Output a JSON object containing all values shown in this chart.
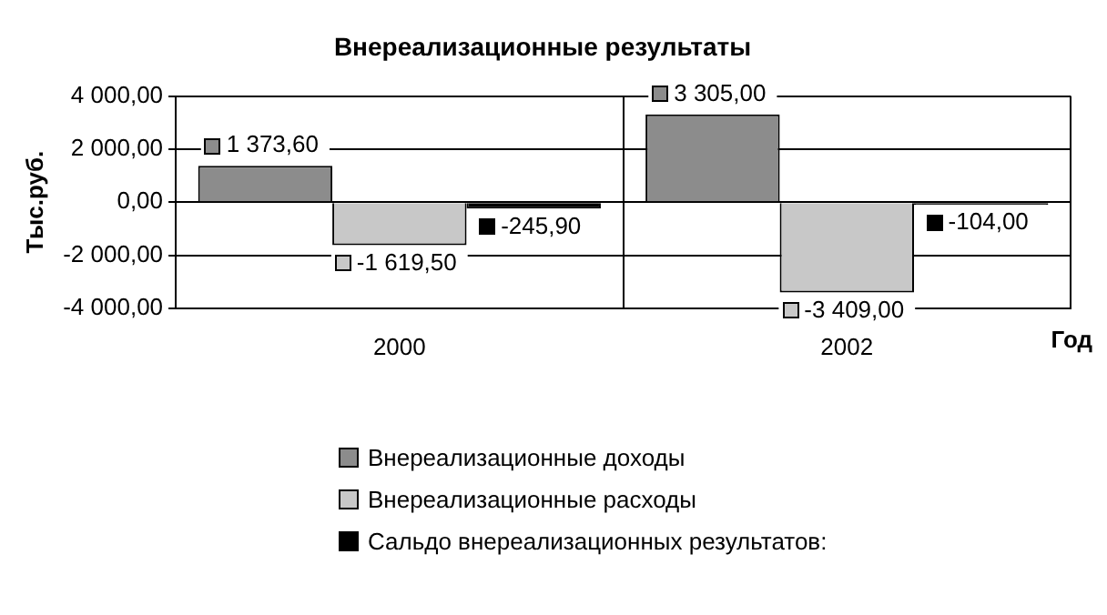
{
  "chart_data": {
    "type": "bar",
    "title": "Внереализационные результаты",
    "xlabel": "Год",
    "ylabel": "Тыс.руб.",
    "categories": [
      "2000",
      "2002"
    ],
    "series": [
      {
        "name": "Внереализационные доходы",
        "color": "#8c8c8c",
        "values": [
          1373.6,
          3305
        ],
        "value_labels": [
          "1 373,60",
          "3 305,00"
        ]
      },
      {
        "name": "Внереализационные расходы",
        "color": "#c8c8c8",
        "values": [
          -1619.5,
          -3409
        ],
        "value_labels": [
          "-1 619,50",
          "-3 409,00"
        ]
      },
      {
        "name": "Сальдо внереализационных результатов:",
        "color": "#000000",
        "values": [
          -245.9,
          -104
        ],
        "value_labels": [
          "-245,90",
          "-104,00"
        ]
      }
    ],
    "ylim": [
      -4000,
      4000
    ],
    "yticks": [
      {
        "value": -4000,
        "label": "-4 000,00"
      },
      {
        "value": -2000,
        "label": "-2 000,00"
      },
      {
        "value": 0,
        "label": "0,00"
      },
      {
        "value": 2000,
        "label": "2 000,00"
      },
      {
        "value": 4000,
        "label": "4 000,00"
      }
    ],
    "grid": true,
    "legend": "bottom"
  }
}
